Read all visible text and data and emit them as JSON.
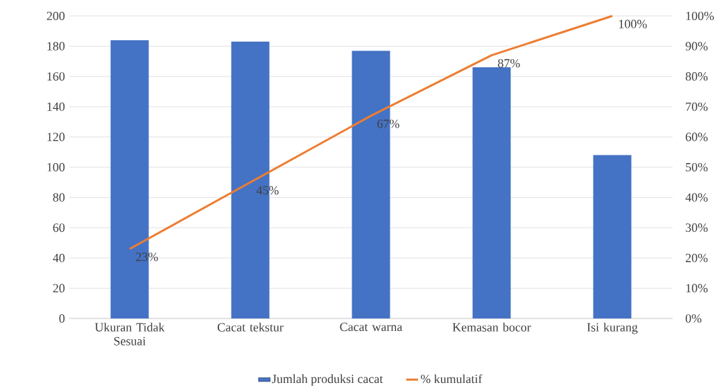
{
  "chart_data": {
    "type": "bar",
    "categories": [
      "Ukuran Tidak Sesuai",
      "Cacat tekstur",
      "Cacat warna",
      "Kemasan bocor",
      "Isi kurang"
    ],
    "series": [
      {
        "name": "Jumlah produksi cacat",
        "color": "#4472c4",
        "values": [
          184,
          183,
          177,
          166,
          108
        ]
      },
      {
        "name": "% kumulatif",
        "type": "line",
        "axis": "y2",
        "color": "#ed7d31",
        "values": [
          23,
          45,
          67,
          87,
          100
        ],
        "value_labels": [
          "23%",
          "45%",
          "67%",
          "87%",
          "100%"
        ]
      }
    ],
    "ylim": [
      0,
      200
    ],
    "yticks": [
      0,
      20,
      40,
      60,
      80,
      100,
      120,
      140,
      160,
      180,
      200
    ],
    "y2lim": [
      0,
      100
    ],
    "y2ticks": [
      {
        "value": 0,
        "label": "0%"
      },
      {
        "value": 10,
        "label": "10%"
      },
      {
        "value": 20,
        "label": "20%"
      },
      {
        "value": 30,
        "label": "30%"
      },
      {
        "value": 40,
        "label": "40%"
      },
      {
        "value": 50,
        "label": "50%"
      },
      {
        "value": 60,
        "label": "60%"
      },
      {
        "value": 70,
        "label": "70%"
      },
      {
        "value": 80,
        "label": "80%"
      },
      {
        "value": 90,
        "label": "90%"
      },
      {
        "value": 100,
        "label": "100%"
      }
    ],
    "grid": "y",
    "legend": "bottom"
  }
}
